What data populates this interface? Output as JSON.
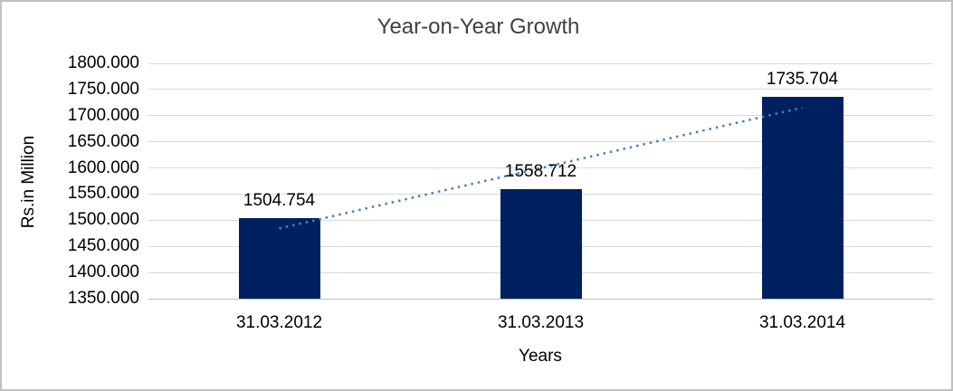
{
  "chart_data": {
    "type": "bar",
    "title": "Year-on-Year Growth",
    "xlabel": "Years",
    "ylabel": "Rs.in Million",
    "categories": [
      "31.03.2012",
      "31.03.2013",
      "31.03.2014"
    ],
    "values": [
      1504.754,
      1558.712,
      1735.704
    ],
    "data_labels": [
      "1504.754",
      "1558.712",
      "1735.704"
    ],
    "ylim": [
      1350,
      1800
    ],
    "ytick_step": 50,
    "yticks": [
      {
        "value": 1800,
        "label": "1800.000"
      },
      {
        "value": 1750,
        "label": "1750.000"
      },
      {
        "value": 1700,
        "label": "1700.000"
      },
      {
        "value": 1650,
        "label": "1650.000"
      },
      {
        "value": 1600,
        "label": "1600.000"
      },
      {
        "value": 1550,
        "label": "1550.000"
      },
      {
        "value": 1500,
        "label": "1500.000"
      },
      {
        "value": 1450,
        "label": "1450.000"
      },
      {
        "value": 1400,
        "label": "1400.000"
      },
      {
        "value": 1350,
        "label": "1350.000"
      }
    ],
    "grid": true,
    "legend": "none",
    "trendline": {
      "kind": "linear",
      "style": "dotted"
    },
    "colors": {
      "bar": "#002060",
      "trendline": "#4a7ebb",
      "gridline": "#d9d9d9",
      "axis_line": "#bfbfbf",
      "title_text": "#404040",
      "axis_text": "#000000",
      "frame_border": "#c0c0c0",
      "background": "#ffffff"
    }
  }
}
